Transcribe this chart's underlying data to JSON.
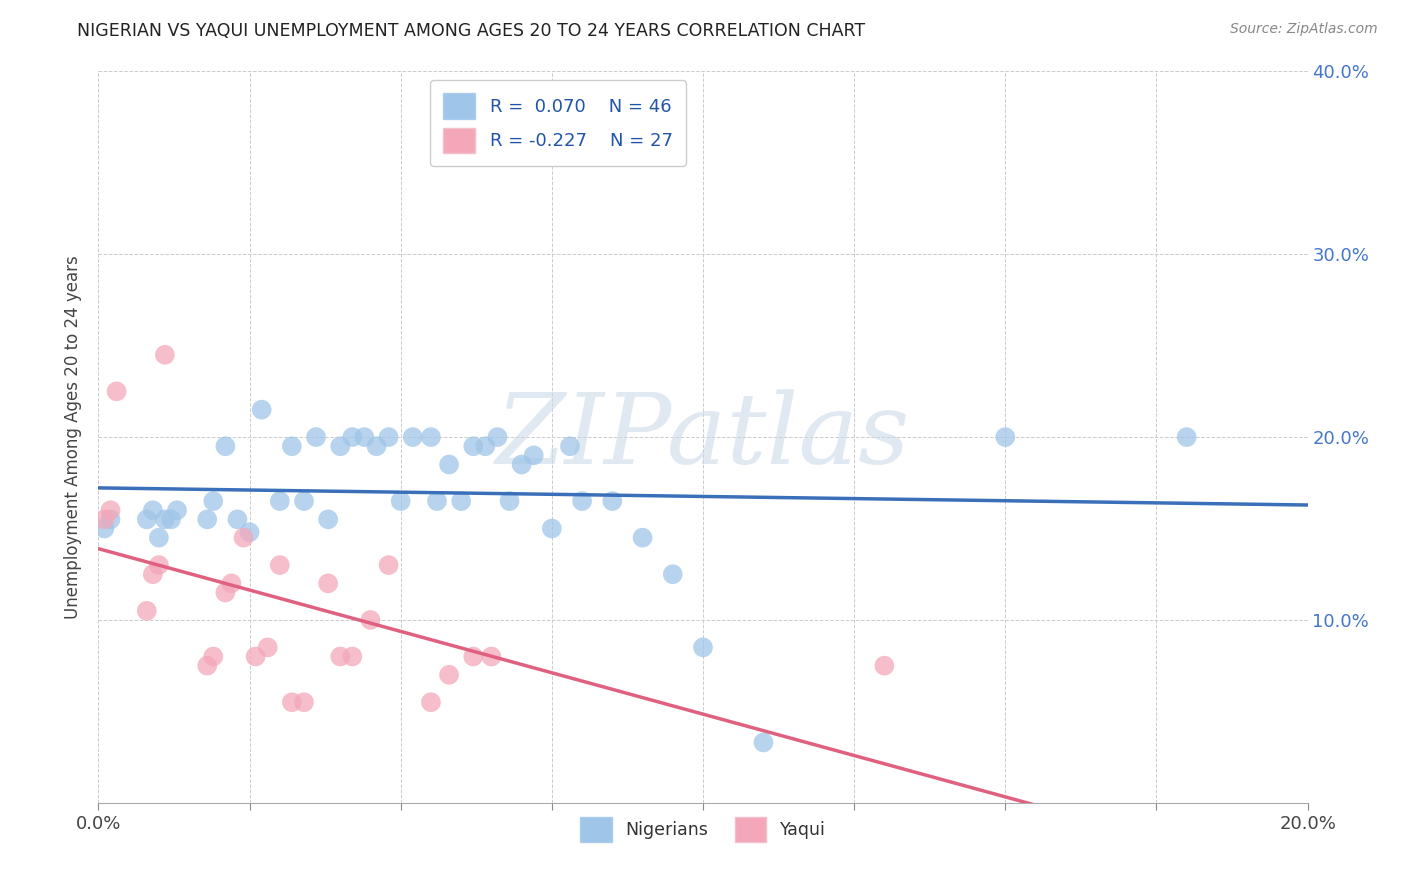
{
  "title": "NIGERIAN VS YAQUI UNEMPLOYMENT AMONG AGES 20 TO 24 YEARS CORRELATION CHART",
  "source": "Source: ZipAtlas.com",
  "ylabel": "Unemployment Among Ages 20 to 24 years",
  "xlabel_nigerians": "Nigerians",
  "xlabel_yaqui": "Yaqui",
  "xlim": [
    0.0,
    0.2
  ],
  "ylim": [
    0.0,
    0.4
  ],
  "xticks": [
    0.0,
    0.025,
    0.05,
    0.075,
    0.1,
    0.125,
    0.15,
    0.175,
    0.2
  ],
  "xticklabels_show": [
    "0.0%",
    "",
    "",
    "",
    "",
    "",
    "",
    "",
    "20.0%"
  ],
  "yticks": [
    0.0,
    0.1,
    0.2,
    0.3,
    0.4
  ],
  "yticklabels_right": [
    "",
    "10.0%",
    "20.0%",
    "30.0%",
    "40.0%"
  ],
  "nigerian_R": 0.07,
  "nigerian_N": 46,
  "yaqui_R": -0.227,
  "yaqui_N": 27,
  "nigerian_color": "#9fc5e8",
  "yaqui_color": "#f4a7b9",
  "nigerian_line_color": "#3a6fba",
  "yaqui_line_color": "#e06080",
  "watermark_text": "ZIPatlas",
  "nigerian_scatter_x": [
    0.001,
    0.002,
    0.008,
    0.009,
    0.01,
    0.011,
    0.012,
    0.013,
    0.018,
    0.019,
    0.021,
    0.023,
    0.025,
    0.027,
    0.03,
    0.032,
    0.034,
    0.036,
    0.038,
    0.04,
    0.042,
    0.044,
    0.046,
    0.048,
    0.05,
    0.052,
    0.055,
    0.056,
    0.058,
    0.06,
    0.062,
    0.064,
    0.066,
    0.068,
    0.07,
    0.072,
    0.075,
    0.078,
    0.08,
    0.085,
    0.09,
    0.095,
    0.1,
    0.11,
    0.15,
    0.18
  ],
  "nigerian_scatter_y": [
    0.15,
    0.155,
    0.155,
    0.16,
    0.145,
    0.155,
    0.155,
    0.16,
    0.155,
    0.165,
    0.195,
    0.155,
    0.148,
    0.215,
    0.165,
    0.195,
    0.165,
    0.2,
    0.155,
    0.195,
    0.2,
    0.2,
    0.195,
    0.2,
    0.165,
    0.2,
    0.2,
    0.165,
    0.185,
    0.165,
    0.195,
    0.195,
    0.2,
    0.165,
    0.185,
    0.19,
    0.15,
    0.195,
    0.165,
    0.165,
    0.145,
    0.125,
    0.085,
    0.033,
    0.2,
    0.2
  ],
  "yaqui_scatter_x": [
    0.001,
    0.002,
    0.003,
    0.008,
    0.009,
    0.01,
    0.011,
    0.018,
    0.019,
    0.021,
    0.022,
    0.024,
    0.026,
    0.028,
    0.03,
    0.032,
    0.034,
    0.038,
    0.04,
    0.042,
    0.045,
    0.048,
    0.055,
    0.058,
    0.062,
    0.065,
    0.13
  ],
  "yaqui_scatter_y": [
    0.155,
    0.16,
    0.225,
    0.105,
    0.125,
    0.13,
    0.245,
    0.075,
    0.08,
    0.115,
    0.12,
    0.145,
    0.08,
    0.085,
    0.13,
    0.055,
    0.055,
    0.12,
    0.08,
    0.08,
    0.1,
    0.13,
    0.055,
    0.07,
    0.08,
    0.08,
    0.075
  ]
}
